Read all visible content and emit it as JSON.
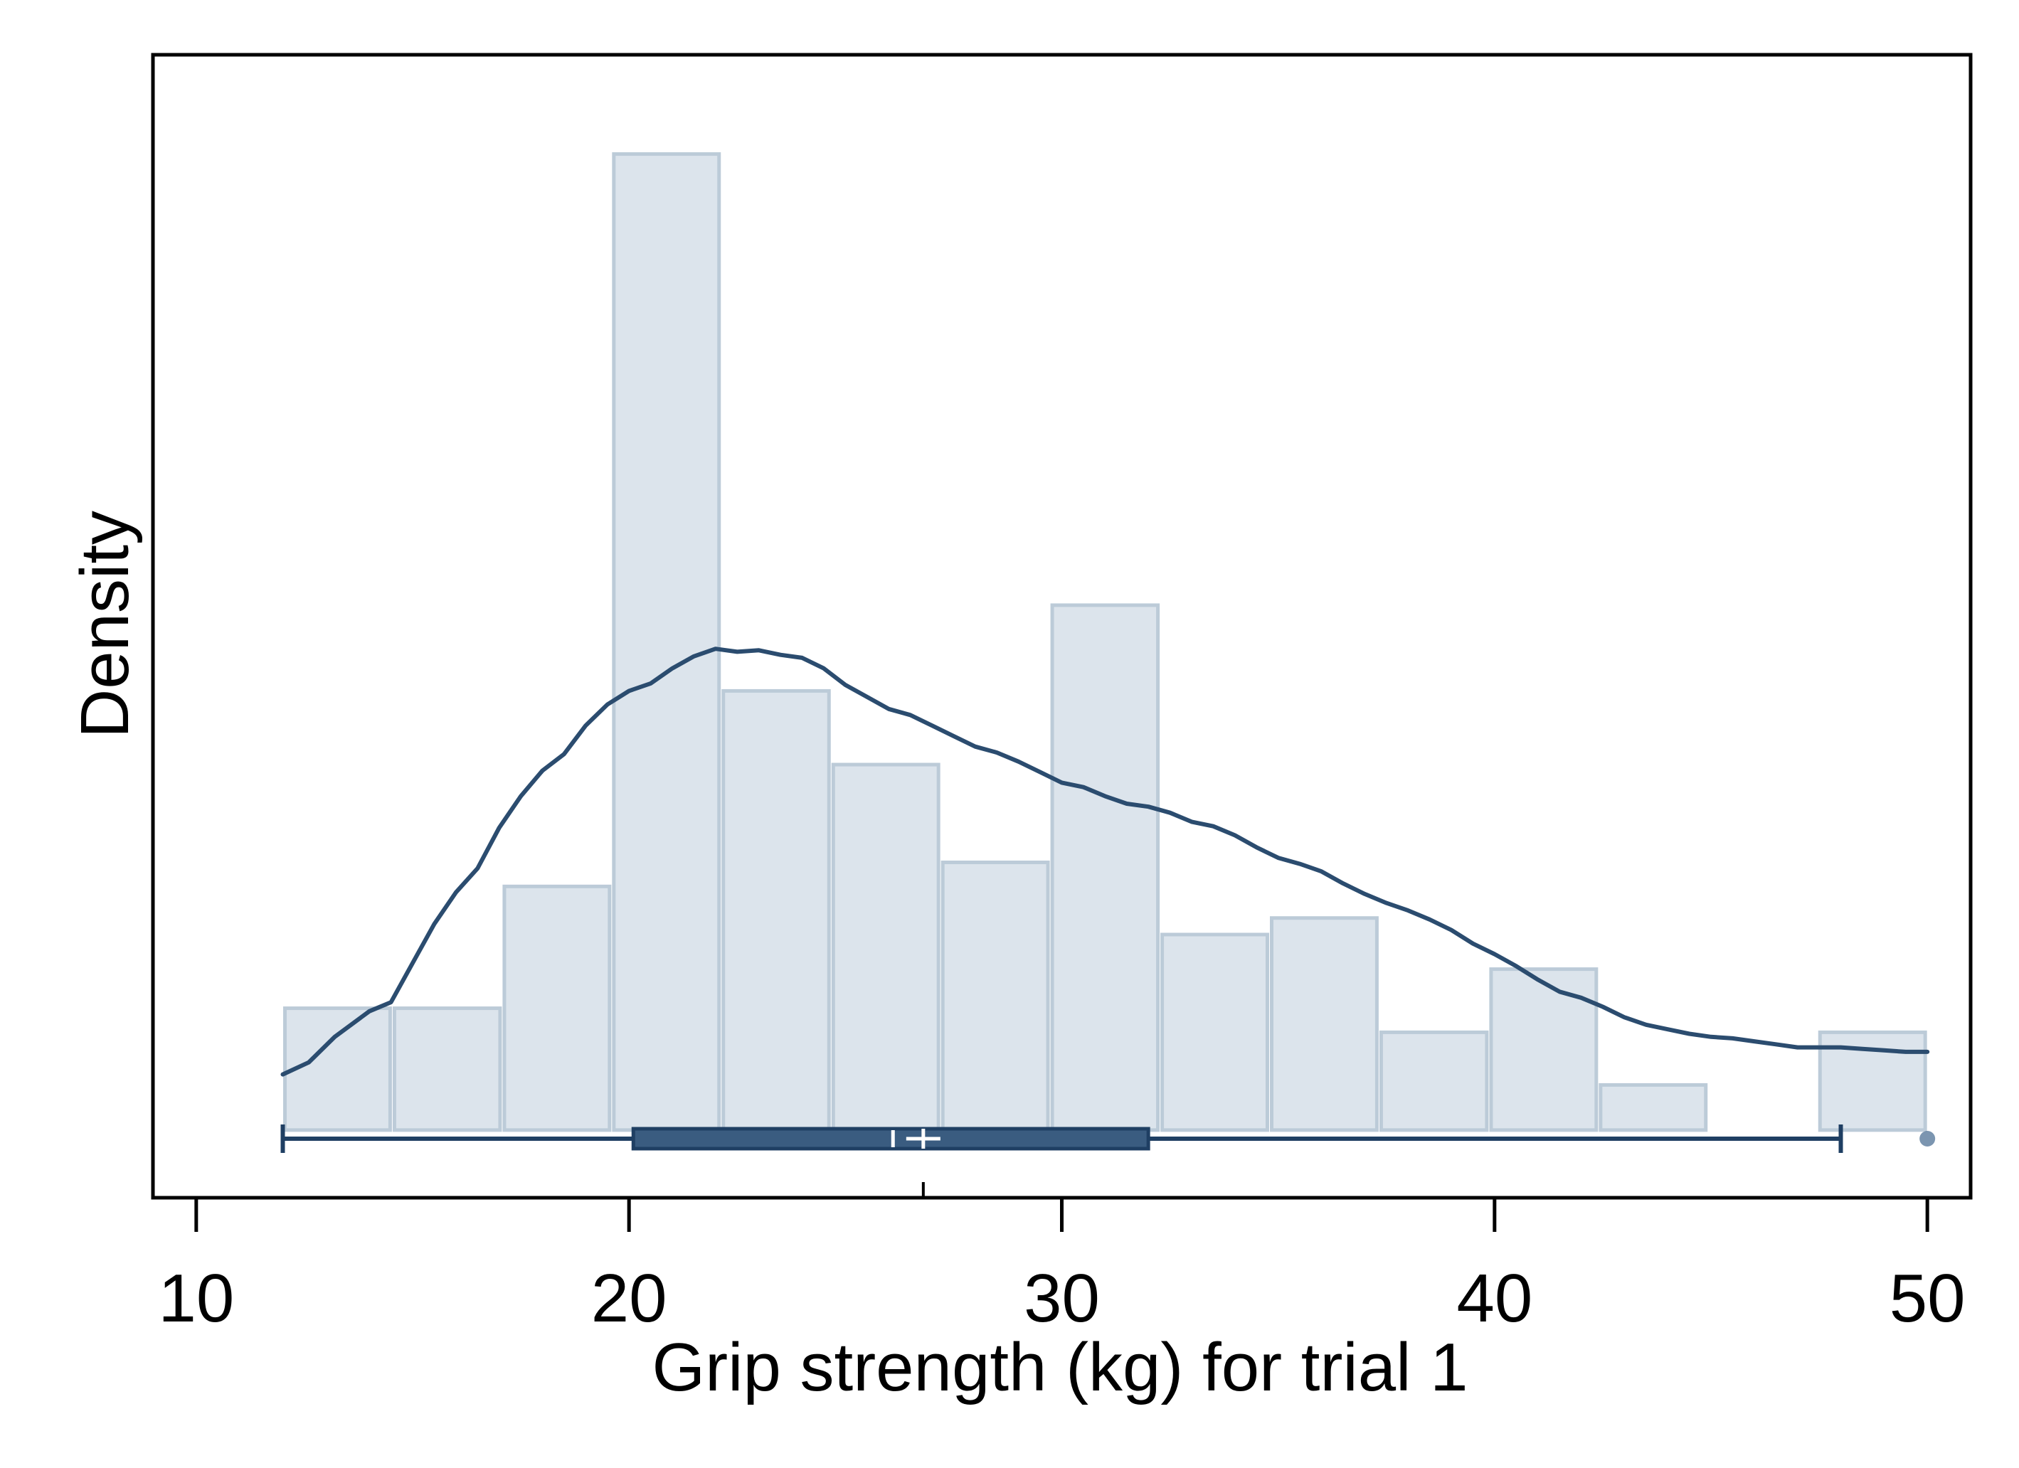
{
  "chart_data": {
    "type": "histogram",
    "title": "",
    "xlabel": "Grip strength (kg) for trial 1",
    "ylabel": "Density",
    "xlim": [
      9,
      51
    ],
    "ylim": [
      -0.0045,
      0.0715
    ],
    "x_ticks": [
      10,
      20,
      30,
      40,
      50
    ],
    "x_tick_labels": [
      "10",
      "20",
      "30",
      "40",
      "50"
    ],
    "y_ticks_shown": false,
    "grid": false,
    "bins": [
      {
        "x0": 12.0,
        "x1": 14.53,
        "density": 0.0081
      },
      {
        "x0": 14.53,
        "x1": 17.07,
        "density": 0.0081
      },
      {
        "x0": 17.07,
        "x1": 19.6,
        "density": 0.0162
      },
      {
        "x0": 19.6,
        "x1": 22.13,
        "density": 0.0649
      },
      {
        "x0": 22.13,
        "x1": 24.67,
        "density": 0.0292
      },
      {
        "x0": 24.67,
        "x1": 27.2,
        "density": 0.0243
      },
      {
        "x0": 27.2,
        "x1": 29.73,
        "density": 0.0178
      },
      {
        "x0": 29.73,
        "x1": 32.27,
        "density": 0.0349
      },
      {
        "x0": 32.27,
        "x1": 34.8,
        "density": 0.013
      },
      {
        "x0": 34.8,
        "x1": 37.33,
        "density": 0.0141
      },
      {
        "x0": 37.33,
        "x1": 39.87,
        "density": 0.0065
      },
      {
        "x0": 39.87,
        "x1": 42.4,
        "density": 0.0107
      },
      {
        "x0": 42.4,
        "x1": 44.93,
        "density": 0.003
      },
      {
        "x0": 47.47,
        "x1": 50.0,
        "density": 0.0065
      }
    ],
    "kde": {
      "x": [
        12,
        12.6,
        13.2,
        14,
        14.5,
        15,
        15.5,
        16,
        16.5,
        17,
        17.5,
        18,
        18.5,
        19,
        19.5,
        20,
        20.5,
        21,
        21.5,
        22,
        22.5,
        23,
        23.5,
        24,
        24.5,
        25,
        25.5,
        26,
        26.5,
        27,
        27.5,
        28,
        28.5,
        29,
        29.5,
        30,
        30.5,
        31,
        31.5,
        32,
        32.5,
        33,
        33.5,
        34,
        34.5,
        35,
        35.5,
        36,
        36.5,
        37,
        37.5,
        38,
        38.5,
        39,
        39.5,
        40,
        40.5,
        41,
        41.5,
        42,
        42.5,
        43,
        43.5,
        44,
        44.5,
        45,
        45.5,
        46,
        46.5,
        47,
        47.5,
        48,
        48.5,
        49,
        49.5,
        50
      ],
      "density": [
        0.0037,
        0.0045,
        0.0062,
        0.0079,
        0.0085,
        0.0111,
        0.0137,
        0.0158,
        0.0174,
        0.0201,
        0.0222,
        0.0239,
        0.025,
        0.0269,
        0.0283,
        0.0292,
        0.0297,
        0.0307,
        0.0315,
        0.032,
        0.0318,
        0.0319,
        0.0316,
        0.0314,
        0.0307,
        0.0296,
        0.0288,
        0.028,
        0.0276,
        0.0269,
        0.0262,
        0.0255,
        0.0251,
        0.0245,
        0.0238,
        0.0231,
        0.0228,
        0.0222,
        0.0217,
        0.0215,
        0.0211,
        0.0205,
        0.0202,
        0.0196,
        0.0188,
        0.0181,
        0.0177,
        0.0172,
        0.0164,
        0.0157,
        0.0151,
        0.0146,
        0.014,
        0.0133,
        0.0124,
        0.0117,
        0.0109,
        0.01,
        0.0092,
        0.0088,
        0.0082,
        0.0075,
        0.007,
        0.0067,
        0.0064,
        0.0062,
        0.0061,
        0.0059,
        0.0057,
        0.0055,
        0.0055,
        0.0055,
        0.0054,
        0.0053,
        0.0052,
        0.0052
      ]
    },
    "boxplot": {
      "whisker_low": 12.0,
      "q1": 20.1,
      "median": 26.1,
      "mean": 26.8,
      "q3": 32.0,
      "whisker_high": 48.0,
      "outliers": [
        50.0
      ]
    },
    "colors": {
      "bar_fill": "#dce4ec",
      "bar_stroke": "#bccbd8",
      "kde_line": "#2b4c6f",
      "box_fill": "#3a5c80",
      "box_stroke": "#1f3f63",
      "mean_marker": "#ffffff",
      "outlier": "#5a7a9c"
    }
  }
}
